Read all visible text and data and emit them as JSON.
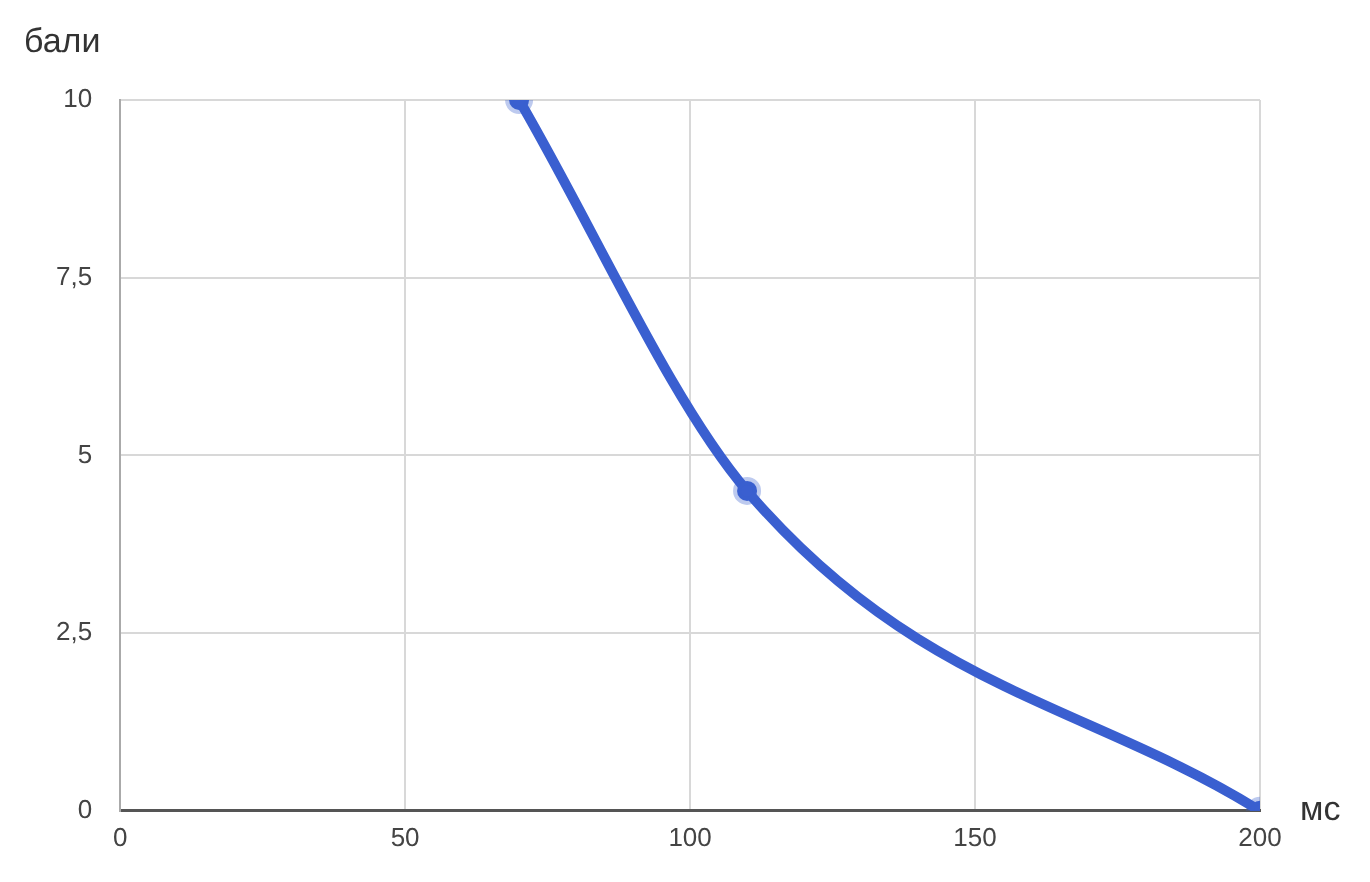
{
  "chart_data": {
    "type": "line",
    "xlabel": "мс",
    "ylabel": "бали",
    "x": [
      70,
      110,
      200
    ],
    "series": [
      {
        "color": "#3a5fd0",
        "values": [
          10,
          4.5,
          0
        ]
      }
    ],
    "xlim": [
      0,
      200
    ],
    "xticks": [
      0,
      50,
      100,
      150,
      200
    ],
    "ylim": [
      0,
      10
    ],
    "yticks": [
      0,
      {
        "value": 2.5,
        "label": "2,5"
      },
      5,
      {
        "value": 7.5,
        "label": "7,5"
      },
      10
    ],
    "grid": true,
    "legend": false,
    "marker": "circle",
    "line_style": "solid"
  }
}
